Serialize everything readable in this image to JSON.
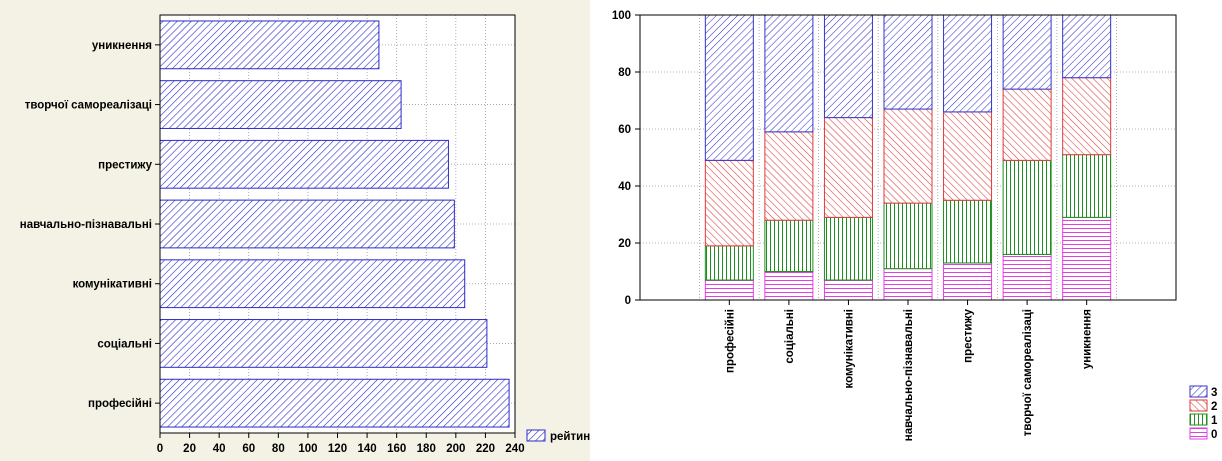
{
  "chart_data": [
    {
      "type": "bar",
      "orientation": "horizontal",
      "categories": [
        "уникнення",
        "творчої самореалізаці",
        "престижу",
        "навчально-пізнавальні",
        "комунікативні",
        "соціальні",
        "професійні"
      ],
      "series": [
        {
          "name": "рейтинг",
          "values": [
            148,
            163,
            195,
            199,
            206,
            221,
            236
          ],
          "color": "#2b2bcc"
        }
      ],
      "xlim": [
        0,
        240
      ],
      "xticks": [
        0,
        20,
        40,
        60,
        80,
        100,
        120,
        140,
        160,
        180,
        200,
        220,
        240
      ],
      "grid": true,
      "legend": "bottom-right"
    },
    {
      "type": "bar",
      "stacked": true,
      "categories": [
        "професійні",
        "соціальні",
        "комунікативні",
        "навчально-пізнавальні",
        "престижу",
        "творчої самореалізаці",
        "уникнення"
      ],
      "series": [
        {
          "name": "0",
          "values": [
            7,
            10,
            7,
            11,
            13,
            16,
            29
          ],
          "color": "#e040e0"
        },
        {
          "name": "1",
          "values": [
            12,
            18,
            22,
            23,
            22,
            33,
            22
          ],
          "color": "#1f8f1f"
        },
        {
          "name": "2",
          "values": [
            30,
            31,
            35,
            33,
            31,
            25,
            27
          ],
          "color": "#e03a3a"
        },
        {
          "name": "3",
          "values": [
            51,
            41,
            36,
            33,
            34,
            26,
            22
          ],
          "color": "#3535c8"
        }
      ],
      "ylim": [
        0,
        100
      ],
      "yticks": [
        0,
        20,
        40,
        60,
        80,
        100
      ],
      "grid": true,
      "legend": "bottom-right"
    }
  ]
}
